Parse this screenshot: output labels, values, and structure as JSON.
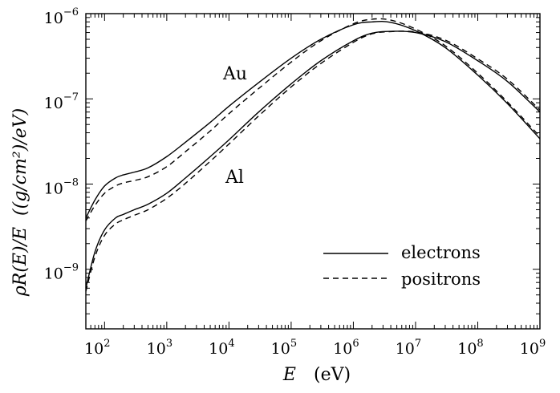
{
  "chart_data": {
    "type": "line",
    "xscale": "log",
    "yscale": "log",
    "xlim": [
      50,
      1000000000
    ],
    "ylim": [
      2e-10,
      1e-06
    ],
    "xlabel": {
      "symbol": "E",
      "unit": "(eV)"
    },
    "ylabel": {
      "symbol": "ρR(E)/E",
      "unit": "((g/cm²)/eV)"
    },
    "x_ticks": [
      {
        "mantissa": "10",
        "exp": "2"
      },
      {
        "mantissa": "10",
        "exp": "3"
      },
      {
        "mantissa": "10",
        "exp": "4"
      },
      {
        "mantissa": "10",
        "exp": "5"
      },
      {
        "mantissa": "10",
        "exp": "6"
      },
      {
        "mantissa": "10",
        "exp": "7"
      },
      {
        "mantissa": "10",
        "exp": "8"
      },
      {
        "mantissa": "10",
        "exp": "9"
      }
    ],
    "y_ticks": [
      {
        "mantissa": "10",
        "exp": "−9"
      },
      {
        "mantissa": "10",
        "exp": "−8"
      },
      {
        "mantissa": "10",
        "exp": "−7"
      },
      {
        "mantissa": "10",
        "exp": "−6"
      }
    ],
    "annotations": [
      "Au",
      "Al"
    ],
    "legend": {
      "position": "lower-right",
      "entries": [
        "electrons",
        "positrons"
      ]
    },
    "series": [
      {
        "material": "Au",
        "particle": "electrons",
        "style": "solid",
        "x": [
          50,
          70,
          100,
          150,
          200,
          300,
          500,
          1000,
          2000,
          5000,
          10000,
          30000,
          100000,
          300000,
          1000000,
          2000000,
          4000000,
          10000000,
          30000000,
          100000000,
          300000000,
          1000000000
        ],
        "y": [
          4e-09,
          6.5e-09,
          9.5e-09,
          1.18e-08,
          1.28e-08,
          1.38e-08,
          1.55e-08,
          2.1e-08,
          3.1e-08,
          5.3e-08,
          8.2e-08,
          1.55e-07,
          3e-07,
          5e-07,
          7.4e-07,
          8e-07,
          7.9e-07,
          6.3e-07,
          4e-07,
          1.9e-07,
          8.8e-08,
          3.4e-08
        ]
      },
      {
        "material": "Au",
        "particle": "positrons",
        "style": "dashed",
        "x": [
          50,
          70,
          100,
          150,
          200,
          300,
          500,
          1000,
          2000,
          5000,
          10000,
          30000,
          100000,
          300000,
          1000000,
          2000000,
          4000000,
          10000000,
          30000000,
          100000000,
          300000000,
          1000000000
        ],
        "y": [
          3.7e-09,
          5.6e-09,
          7.8e-09,
          9.5e-09,
          1.03e-08,
          1.1e-08,
          1.22e-08,
          1.6e-08,
          2.4e-08,
          4.2e-08,
          6.7e-08,
          1.32e-07,
          2.7e-07,
          4.8e-07,
          7.6e-07,
          8.6e-07,
          8.4e-07,
          6.6e-07,
          4.2e-07,
          2e-07,
          9.2e-08,
          3.6e-08
        ]
      },
      {
        "material": "Al",
        "particle": "electrons",
        "style": "solid",
        "x": [
          50,
          70,
          100,
          150,
          200,
          300,
          500,
          1000,
          2000,
          5000,
          10000,
          30000,
          100000,
          300000,
          1000000,
          2000000,
          4000000,
          10000000,
          30000000,
          100000000,
          300000000,
          1000000000
        ],
        "y": [
          6e-10,
          1.6e-09,
          2.9e-09,
          4e-09,
          4.4e-09,
          5e-09,
          5.8e-09,
          7.8e-09,
          1.18e-08,
          2.1e-08,
          3.3e-08,
          7e-08,
          1.5e-07,
          2.8e-07,
          4.8e-07,
          5.9e-07,
          6.2e-07,
          6e-07,
          4.7e-07,
          2.8e-07,
          1.6e-07,
          7e-08
        ]
      },
      {
        "material": "Al",
        "particle": "positrons",
        "style": "dashed",
        "x": [
          50,
          70,
          100,
          150,
          200,
          300,
          500,
          1000,
          2000,
          5000,
          10000,
          30000,
          100000,
          300000,
          1000000,
          2000000,
          4000000,
          10000000,
          30000000,
          100000000,
          300000000,
          1000000000
        ],
        "y": [
          5.5e-10,
          1.4e-09,
          2.5e-09,
          3.4e-09,
          3.8e-09,
          4.3e-09,
          5e-09,
          6.8e-09,
          1.02e-08,
          1.85e-08,
          2.95e-08,
          6.3e-08,
          1.38e-07,
          2.6e-07,
          4.6e-07,
          5.8e-07,
          6.15e-07,
          6.1e-07,
          4.9e-07,
          2.95e-07,
          1.7e-07,
          7.4e-08
        ]
      }
    ]
  }
}
